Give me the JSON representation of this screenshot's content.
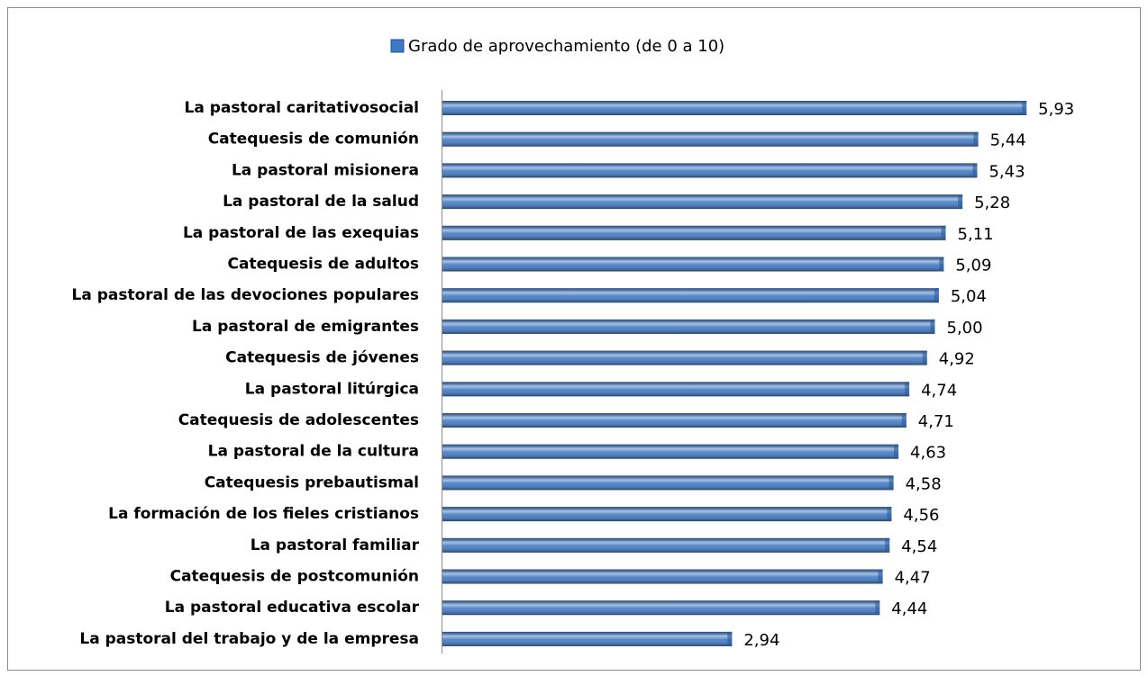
{
  "chart_data": {
    "type": "bar",
    "orientation": "horizontal",
    "categories": [
      "La pastoral caritativosocial",
      "Catequesis de comunión",
      "La pastoral misionera",
      "La pastoral de la salud",
      "La pastoral de las exequias",
      "Catequesis de adultos",
      "La pastoral de las devociones populares",
      "La pastoral de emigrantes",
      "Catequesis de jóvenes",
      "La pastoral litúrgica",
      "Catequesis de adolescentes",
      "La pastoral de la cultura",
      "Catequesis prebautismal",
      "La formación de los fieles cristianos",
      "La pastoral familiar",
      "Catequesis de postcomunión",
      "La pastoral educativa escolar",
      "La pastoral del trabajo y de la empresa"
    ],
    "series": [
      {
        "name": "Grado de aprovechamiento (de 0 a 10)",
        "color": "#3f78c4",
        "values": [
          5.93,
          5.44,
          5.43,
          5.28,
          5.11,
          5.09,
          5.04,
          5.0,
          4.92,
          4.74,
          4.71,
          4.63,
          4.58,
          4.56,
          4.54,
          4.47,
          4.44,
          2.94
        ],
        "value_labels": [
          "5,93",
          "5,44",
          "5,43",
          "5,28",
          "5,11",
          "5,09",
          "5,04",
          "5,00",
          "4,92",
          "4,74",
          "4,71",
          "4,63",
          "4,58",
          "4,56",
          "4,54",
          "4,47",
          "4,44",
          "2,94"
        ]
      }
    ],
    "legend": "top"
  }
}
